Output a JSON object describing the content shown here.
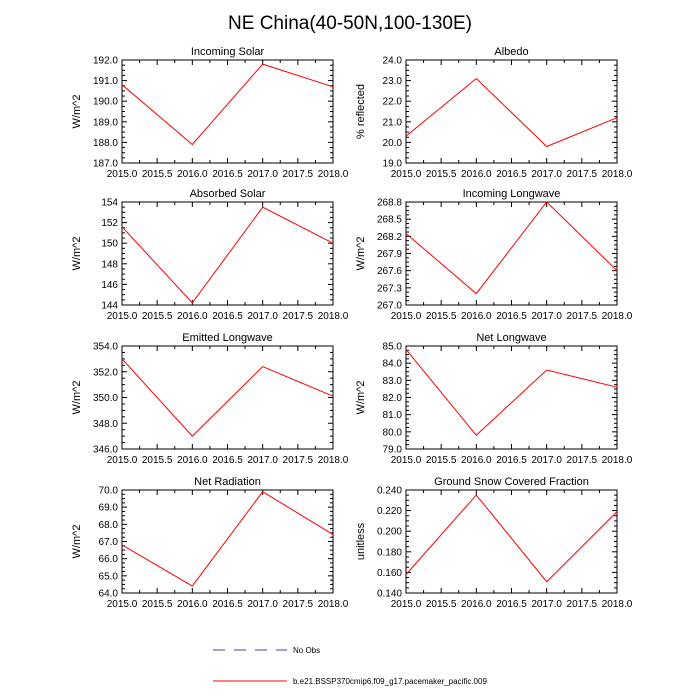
{
  "figure": {
    "title": "NE China(40-50N,100-130E)",
    "legend": [
      {
        "label": "No Obs",
        "color": "#3f3fa0",
        "style": "dashed"
      },
      {
        "label": "b.e21.BSSP370cmip6.f09_g17.pacemaker_pacific.009",
        "color": "#ff0000",
        "style": "solid"
      }
    ]
  },
  "chart_data": [
    {
      "type": "line",
      "title": "Incoming Solar",
      "ylabel": "W/m^2",
      "x": [
        2015,
        2016,
        2017,
        2018
      ],
      "y": [
        190.8,
        187.9,
        191.8,
        190.7
      ],
      "xlim": [
        2015,
        2018
      ],
      "ylim": [
        187,
        192
      ],
      "xticks": [
        "2015.0",
        "2015.5",
        "2016.0",
        "2016.5",
        "2017.0",
        "2017.5",
        "2018.0"
      ],
      "yticks": [
        "187.0",
        "188.0",
        "189.0",
        "190.0",
        "191.0",
        "192.0"
      ]
    },
    {
      "type": "line",
      "title": "Albedo",
      "ylabel": "% reflected",
      "x": [
        2015,
        2016,
        2017,
        2018
      ],
      "y": [
        20.3,
        23.1,
        19.8,
        21.2
      ],
      "xlim": [
        2015,
        2018
      ],
      "ylim": [
        19,
        24
      ],
      "xticks": [
        "2015.0",
        "2015.5",
        "2016.0",
        "2016.5",
        "2017.0",
        "2017.5",
        "2018.0"
      ],
      "yticks": [
        "19.0",
        "20.0",
        "21.0",
        "22.0",
        "23.0",
        "24.0"
      ]
    },
    {
      "type": "line",
      "title": "Absorbed Solar",
      "ylabel": "W/m^2",
      "x": [
        2015,
        2016,
        2017,
        2018
      ],
      "y": [
        151.6,
        144.2,
        153.5,
        150.0
      ],
      "xlim": [
        2015,
        2018
      ],
      "ylim": [
        144,
        154
      ],
      "xticks": [
        "2015.0",
        "2015.5",
        "2016.0",
        "2016.5",
        "2017.0",
        "2017.5",
        "2018.0"
      ],
      "yticks": [
        "144",
        "146",
        "148",
        "150",
        "152",
        "154"
      ]
    },
    {
      "type": "line",
      "title": "Incoming Longwave",
      "ylabel": "W/m^2",
      "x": [
        2015,
        2016,
        2017,
        2018
      ],
      "y": [
        268.25,
        267.2,
        268.8,
        267.6
      ],
      "xlim": [
        2015,
        2018
      ],
      "ylim": [
        267.0,
        268.8
      ],
      "xticks": [
        "2015.0",
        "2015.5",
        "2016.0",
        "2016.5",
        "2017.0",
        "2017.5",
        "2018.0"
      ],
      "yticks": [
        "267.0",
        "267.3",
        "267.6",
        "267.9",
        "268.2",
        "268.5",
        "268.8"
      ]
    },
    {
      "type": "line",
      "title": "Emitted Longwave",
      "ylabel": "W/m^2",
      "x": [
        2015,
        2016,
        2017,
        2018
      ],
      "y": [
        353.0,
        347.0,
        352.4,
        350.1
      ],
      "xlim": [
        2015,
        2018
      ],
      "ylim": [
        346,
        354
      ],
      "xticks": [
        "2015.0",
        "2015.5",
        "2016.0",
        "2016.5",
        "2017.0",
        "2017.5",
        "2018.0"
      ],
      "yticks": [
        "346.0",
        "348.0",
        "350.0",
        "352.0",
        "354.0"
      ]
    },
    {
      "type": "line",
      "title": "Net Longwave",
      "ylabel": "W/m^2",
      "x": [
        2015,
        2016,
        2017,
        2018
      ],
      "y": [
        84.8,
        79.8,
        83.6,
        82.6
      ],
      "xlim": [
        2015,
        2018
      ],
      "ylim": [
        79,
        85
      ],
      "xticks": [
        "2015.0",
        "2015.5",
        "2016.0",
        "2016.5",
        "2017.0",
        "2017.5",
        "2018.0"
      ],
      "yticks": [
        "79.0",
        "80.0",
        "81.0",
        "82.0",
        "83.0",
        "84.0",
        "85.0"
      ]
    },
    {
      "type": "line",
      "title": "Net Radiation",
      "ylabel": "W/m^2",
      "x": [
        2015,
        2016,
        2017,
        2018
      ],
      "y": [
        66.8,
        64.4,
        69.9,
        67.4
      ],
      "xlim": [
        2015,
        2018
      ],
      "ylim": [
        64,
        70
      ],
      "xticks": [
        "2015.0",
        "2015.5",
        "2016.0",
        "2016.5",
        "2017.0",
        "2017.5",
        "2018.0"
      ],
      "yticks": [
        "64.0",
        "65.0",
        "66.0",
        "67.0",
        "68.0",
        "69.0",
        "70.0"
      ]
    },
    {
      "type": "line",
      "title": "Ground Snow Covered Fraction",
      "ylabel": "unitless",
      "x": [
        2015,
        2016,
        2017,
        2018
      ],
      "y": [
        0.158,
        0.235,
        0.151,
        0.219
      ],
      "xlim": [
        2015,
        2018
      ],
      "ylim": [
        0.14,
        0.24
      ],
      "xticks": [
        "2015.0",
        "2015.5",
        "2016.0",
        "2016.5",
        "2017.0",
        "2017.5",
        "2018.0"
      ],
      "yticks": [
        "0.140",
        "0.160",
        "0.180",
        "0.200",
        "0.220",
        "0.240"
      ]
    }
  ]
}
